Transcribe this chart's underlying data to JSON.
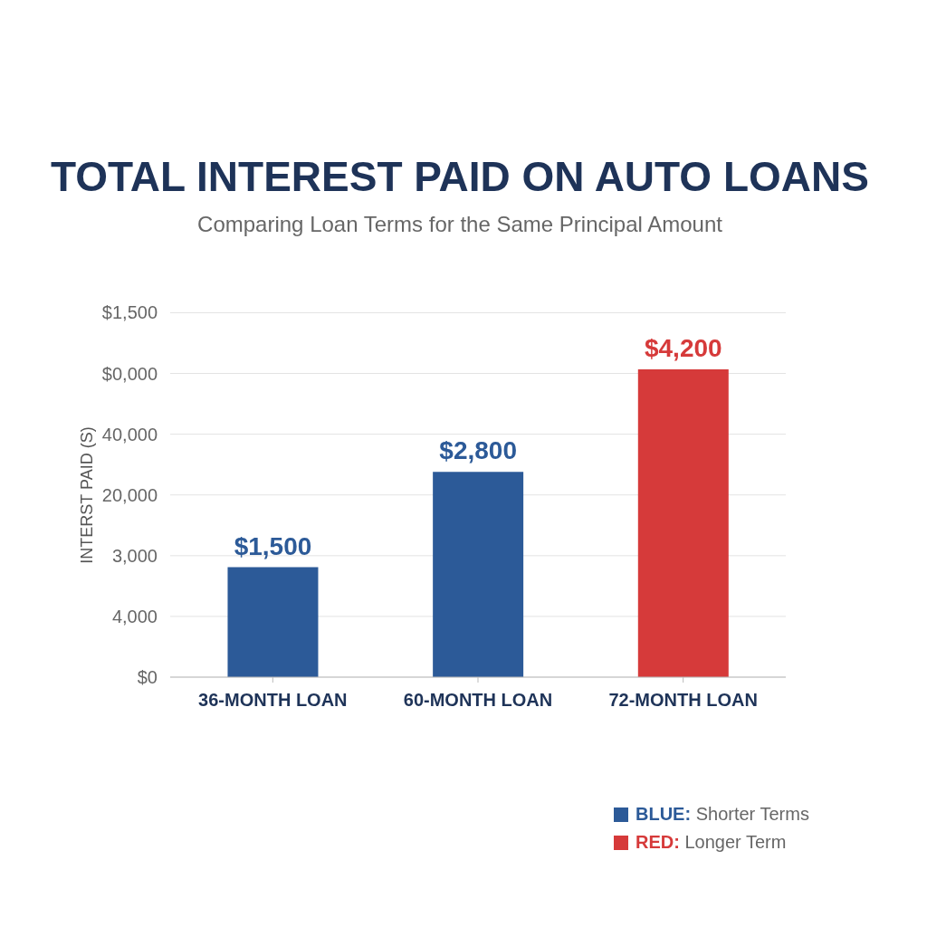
{
  "chart_data": {
    "type": "bar",
    "title": "TOTAL INTEREST PAID ON AUTO LOANS",
    "subtitle": "Comparing Loan Terms for the Same Principal Amount",
    "ylabel": "INTERST PAID (S)",
    "categories": [
      "36-MONTH LOAN",
      "60-MONTH LOAN",
      "72-MONTH LOAN"
    ],
    "stacked": true,
    "series": [
      {
        "name": "BLUE: Shorter Terms",
        "color": "#2c5a98",
        "values": [
          1500,
          2800,
          null
        ],
        "value_labels": [
          "$1,500",
          "$2,800",
          null
        ]
      },
      {
        "name": "RED: Longer Term",
        "color": "#d63a3a",
        "values": [
          null,
          null,
          4200
        ],
        "value_labels": [
          null,
          null,
          "$4,200"
        ]
      }
    ],
    "annotations": [
      "$1,500",
      "$0,000",
      "40,000",
      "20,000",
      "3,000",
      "4,000",
      "$0"
    ],
    "grid": "y",
    "legend": "bottom right"
  }
}
